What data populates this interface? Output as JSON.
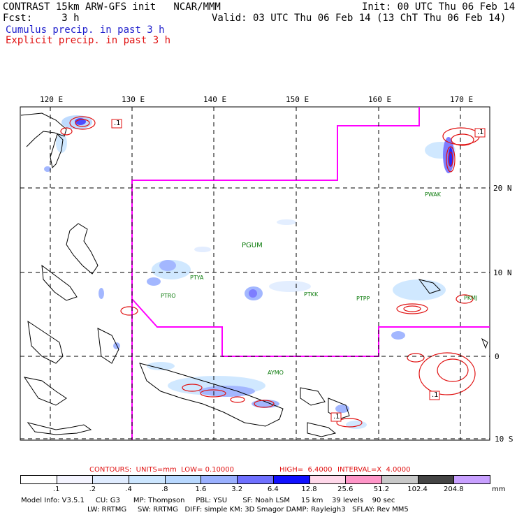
{
  "header": {
    "line1_left": "CONTRAST 15km ARW-GFS init   NCAR/MMM",
    "line1_right": "Init: 00 UTC Thu 06 Feb 14",
    "line2_left": "Fcst:     3 h",
    "line2_right": "Valid: 03 UTC Thu 06 Feb 14 (13 ChT Thu 06 Feb 14)",
    "cumulus_label": "Cumulus precip. in past 3 h",
    "explicit_label": "Explicit precip. in past 3 h",
    "cumulus_color": "#1f1fcc",
    "explicit_color": "#e01010"
  },
  "map": {
    "lon_labels": [
      "120 E",
      "130 E",
      "140 E",
      "150 E",
      "160 E",
      "170 E"
    ],
    "lat_labels": [
      "20 N",
      "10 N",
      "0",
      "10 S"
    ],
    "stations": [
      "PWAK",
      "PGUM",
      "PTYA",
      "PTRO",
      "PTKK",
      "PTPP",
      "PKMJ",
      "AYMO"
    ],
    "contour_labels": [
      ".1",
      ".1",
      ".1",
      ".1"
    ],
    "border_color": "#ff00ff",
    "contour_color": "#e01010",
    "station_color": "#0a7a0a"
  },
  "contours_info": {
    "units": "CONTOURS:  UNITS=mm  LOW= 0.10000",
    "high": "HIGH=  6.4000",
    "interval": "INTERVAL=X  4.0000"
  },
  "colorbar": {
    "ticks": [
      ".1",
      ".2",
      ".4",
      ".8",
      "1.6",
      "3.2",
      "6.4",
      "12.8",
      "25.6",
      "51.2",
      "102.4",
      "204.8"
    ],
    "unit": "mm",
    "colors": [
      "#ffffff",
      "#f4f4ff",
      "#e0ecff",
      "#cce6ff",
      "#b8d8ff",
      "#9ab0ff",
      "#6f70ff",
      "#1010ff",
      "#ffd8ea",
      "#ff96c8",
      "#c8c8c8",
      "#444444",
      "#c8a0ff"
    ]
  },
  "model_info": {
    "line1": "Model Info: V3.5.1     CU: G3      MP: Thompson     PBL: YSU       SF: Noah LSM     15 km    39 levels    90 sec",
    "line2": "LW: RRTMG     SW: RRTMG   DIFF: simple KM: 3D Smagor DAMP: Rayleigh3   SFLAY: Rev MM5"
  }
}
